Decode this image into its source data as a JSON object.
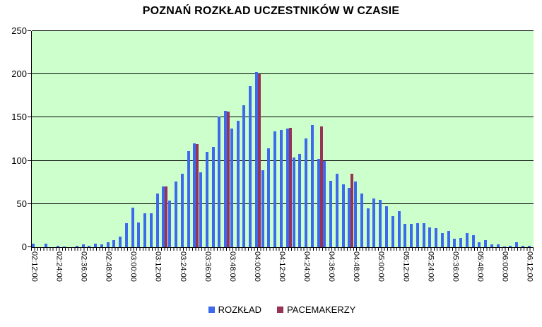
{
  "title": "POZNAŃ ROZKŁAD UCZESTNIKÓW W CZASIE",
  "colors": {
    "bar_blue": "#3D6AEC",
    "bar_maroon": "#993355",
    "plot_background": "#CCFFCC",
    "gridline": "#000000",
    "text": "#000000",
    "page_background": "#FFFFFF"
  },
  "legend": [
    {
      "label": "ROZKŁAD",
      "color": "#3D6AEC"
    },
    {
      "label": "PACEMAKERZY",
      "color": "#993355"
    }
  ],
  "chart_data": {
    "type": "bar",
    "title": "POZNAŃ ROZKŁAD UCZESTNIKÓW W CZASIE",
    "xlabel": "",
    "ylabel": "",
    "ylim": [
      0,
      250
    ],
    "yticks": [
      0,
      50,
      100,
      150,
      200,
      250
    ],
    "grid": true,
    "legend_position": "bottom",
    "plot_bg": "#CCFFCC",
    "x_label_interval": 4,
    "categories": [
      "02:12:00",
      "02:15:00",
      "02:18:00",
      "02:21:00",
      "02:24:00",
      "02:27:00",
      "02:30:00",
      "02:33:00",
      "02:36:00",
      "02:39:00",
      "02:42:00",
      "02:45:00",
      "02:48:00",
      "02:51:00",
      "02:54:00",
      "02:57:00",
      "03:00:00",
      "03:03:00",
      "03:06:00",
      "03:09:00",
      "03:12:00",
      "03:15:00",
      "03:18:00",
      "03:21:00",
      "03:24:00",
      "03:27:00",
      "03:30:00",
      "03:33:00",
      "03:36:00",
      "03:39:00",
      "03:42:00",
      "03:45:00",
      "03:48:00",
      "03:51:00",
      "03:54:00",
      "03:57:00",
      "04:00:00",
      "04:03:00",
      "04:06:00",
      "04:09:00",
      "04:12:00",
      "04:15:00",
      "04:18:00",
      "04:21:00",
      "04:24:00",
      "04:27:00",
      "04:30:00",
      "04:33:00",
      "04:36:00",
      "04:39:00",
      "04:42:00",
      "04:45:00",
      "04:48:00",
      "04:51:00",
      "04:54:00",
      "04:57:00",
      "05:00:00",
      "05:03:00",
      "05:06:00",
      "05:09:00",
      "05:12:00",
      "05:15:00",
      "05:18:00",
      "05:21:00",
      "05:24:00",
      "05:27:00",
      "05:30:00",
      "05:33:00",
      "05:36:00",
      "05:39:00",
      "05:42:00",
      "05:45:00",
      "05:48:00",
      "05:51:00",
      "05:54:00",
      "05:57:00",
      "06:00:00",
      "06:03:00",
      "06:06:00",
      "06:09:00",
      "06:12:00"
    ],
    "series": [
      {
        "name": "ROZKŁAD",
        "color": "#3D6AEC",
        "values": [
          4,
          0,
          4,
          0,
          2,
          1,
          0,
          2,
          3,
          2,
          4,
          3,
          6,
          8,
          12,
          28,
          46,
          29,
          39,
          39,
          62,
          70,
          54,
          76,
          85,
          111,
          120,
          87,
          110,
          116,
          151,
          158,
          137,
          146,
          164,
          186,
          203,
          89,
          114,
          134,
          136,
          137,
          104,
          108,
          126,
          141,
          102,
          100,
          77,
          85,
          73,
          69,
          76,
          62,
          45,
          56,
          55,
          47,
          36,
          42,
          27,
          27,
          28,
          28,
          23,
          22,
          16,
          19,
          10,
          11,
          16,
          14,
          6,
          8,
          3,
          3,
          1,
          2,
          6,
          2,
          2
        ]
      },
      {
        "name": "PACEMAKERZY",
        "color": "#993355",
        "values": [
          null,
          null,
          null,
          null,
          null,
          null,
          null,
          null,
          null,
          null,
          null,
          null,
          null,
          null,
          null,
          null,
          null,
          null,
          null,
          null,
          null,
          70,
          null,
          null,
          null,
          null,
          119,
          null,
          null,
          null,
          null,
          157,
          null,
          null,
          null,
          null,
          200,
          null,
          null,
          null,
          null,
          138,
          null,
          null,
          null,
          null,
          140,
          null,
          null,
          null,
          null,
          85,
          null,
          null,
          null,
          null,
          null,
          null,
          null,
          null,
          null,
          null,
          null,
          null,
          null,
          null,
          null,
          null,
          null,
          null,
          null,
          null,
          null,
          null,
          null,
          null,
          null,
          null,
          null,
          null,
          null
        ]
      }
    ]
  }
}
